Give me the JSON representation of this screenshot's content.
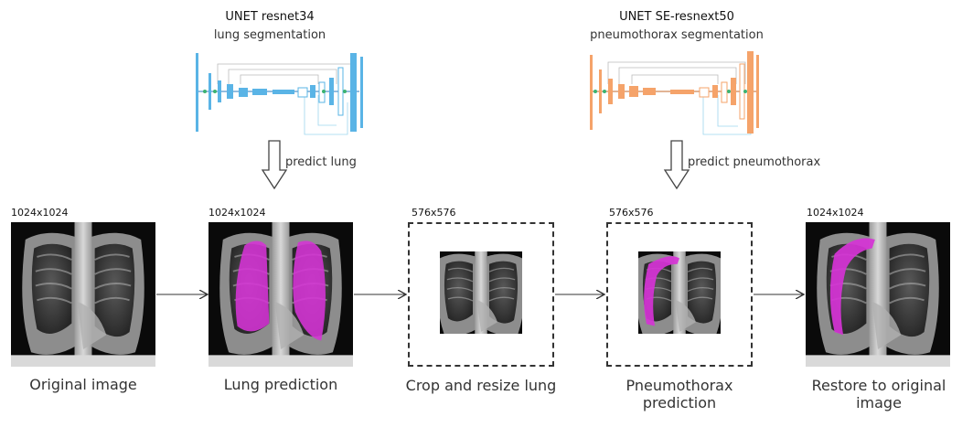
{
  "networks": [
    {
      "title": "UNET resnet34",
      "subtitle": "lung segmentation",
      "arrow_label": "predict lung",
      "color": "#5ab4e6",
      "dark_color": "#1f7fc0"
    },
    {
      "title": "UNET SE-resnext50",
      "subtitle": "pneumothorax segmentation",
      "arrow_label": "predict pneumothorax",
      "color": "#f5a36a",
      "dark_color": "#d9722e"
    }
  ],
  "stages": [
    {
      "size": "1024x1024",
      "caption": "Original image"
    },
    {
      "size": "1024x1024",
      "caption": "Lung prediction"
    },
    {
      "size": "576x576",
      "caption": "Crop and resize lung"
    },
    {
      "size": "576x576",
      "caption": "Pneumothorax prediction"
    },
    {
      "size": "1024x1024",
      "caption": "Restore to original image"
    }
  ],
  "colors": {
    "mask": "#d633d6",
    "arrow": "#333333",
    "skip_line": "#9fd6ef",
    "skip_line_orange": "#9fd6ef"
  }
}
